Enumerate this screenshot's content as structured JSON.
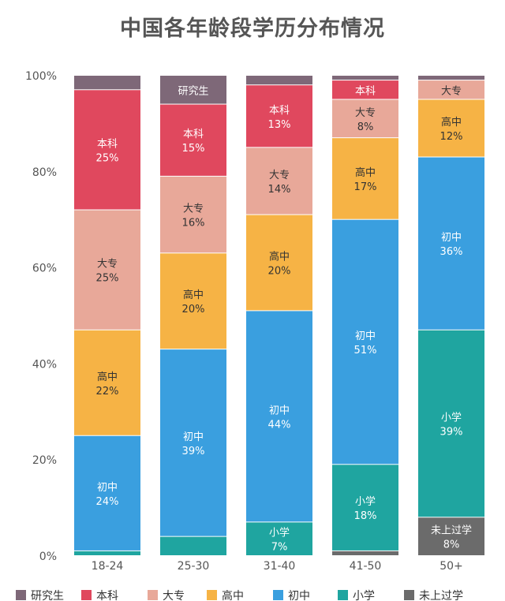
{
  "chart_data": {
    "type": "bar",
    "stacked": true,
    "title": "中国各年龄段学历分布情况",
    "xlabel": "",
    "ylabel": "",
    "ylim": [
      0,
      100
    ],
    "yticks": [
      "0%",
      "20%",
      "40%",
      "60%",
      "80%",
      "100%"
    ],
    "categories": [
      "18-24",
      "25-30",
      "31-40",
      "41-50",
      "50+"
    ],
    "legend_position": "bottom",
    "series": [
      {
        "name": "未上过学",
        "color": "#6b6b6b",
        "values": [
          0,
          0,
          0,
          1,
          8
        ]
      },
      {
        "name": "小学",
        "color": "#1fa5a0",
        "values": [
          1,
          4,
          7,
          18,
          39
        ]
      },
      {
        "name": "初中",
        "color": "#3a9fdf",
        "values": [
          24,
          39,
          44,
          51,
          36
        ]
      },
      {
        "name": "高中",
        "color": "#f6b345",
        "values": [
          22,
          20,
          20,
          17,
          12
        ]
      },
      {
        "name": "大专",
        "color": "#e8a899",
        "values": [
          25,
          16,
          14,
          8,
          4
        ]
      },
      {
        "name": "本科",
        "color": "#e0485e",
        "values": [
          25,
          15,
          13,
          4,
          0
        ]
      },
      {
        "name": "研究生",
        "color": "#7e6878",
        "values": [
          3,
          6,
          2,
          1,
          1
        ]
      }
    ],
    "segment_labels": [
      [
        null,
        null,
        "初中|24%",
        "高中|22%",
        "大专|25%",
        "本科|25%",
        null
      ],
      [
        null,
        null,
        "初中|39%",
        "高中|20%",
        "大专|16%",
        "本科|15%",
        "研究生"
      ],
      [
        null,
        "小学|7%",
        "初中|44%",
        "高中|20%",
        "大专|14%",
        "本科|13%",
        null
      ],
      [
        null,
        "小学|18%",
        "初中|51%",
        "高中|17%",
        "大专|8%",
        "本科",
        null
      ],
      [
        "未上过学|8%",
        "小学|39%",
        "初中|36%",
        "高中|12%",
        "大专",
        null,
        null
      ]
    ],
    "legend_order": [
      "研究生",
      "本科",
      "大专",
      "高中",
      "初中",
      "小学",
      "未上过学"
    ]
  }
}
